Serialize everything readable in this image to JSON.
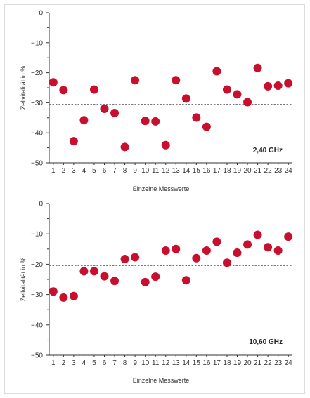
{
  "chart_data": [
    {
      "type": "scatter",
      "xlabel": "Einzelne Messwerte",
      "ylabel": "Zellvitalität in %",
      "annotation": "2,40 GHz",
      "ylim": [
        -50,
        0
      ],
      "xlim": [
        0.6,
        24.4
      ],
      "yticks": [
        "0",
        "−10",
        "−20",
        "−30",
        "−40",
        "−50"
      ],
      "ytick_values": [
        0,
        -10,
        -20,
        -30,
        -40,
        -50
      ],
      "xticks": [
        "1",
        "2",
        "3",
        "4",
        "5",
        "6",
        "7",
        "8",
        "9",
        "10",
        "11",
        "12",
        "13",
        "14",
        "15",
        "16",
        "17",
        "18",
        "19",
        "20",
        "21",
        "22",
        "23",
        "24"
      ],
      "reference_line": -30.5,
      "marker_color": "#c8102e",
      "x": [
        1,
        2,
        3,
        4,
        5,
        6,
        7,
        8,
        9,
        10,
        11,
        12,
        13,
        14,
        15,
        16,
        17,
        18,
        19,
        20,
        21,
        22,
        23,
        24
      ],
      "y": [
        -23.2,
        -25.8,
        -42.8,
        -35.8,
        -25.6,
        -32.0,
        -33.4,
        -44.7,
        -22.5,
        -36.0,
        -36.2,
        -44.1,
        -22.5,
        -28.6,
        -34.9,
        -38.0,
        -19.5,
        -25.6,
        -27.2,
        -29.8,
        -18.4,
        -24.5,
        -24.3,
        -23.5
      ]
    },
    {
      "type": "scatter",
      "xlabel": "Einzelne Messwerte",
      "ylabel": "Zellvitalität in %",
      "annotation": "10,60 GHz",
      "ylim": [
        -50,
        0
      ],
      "xlim": [
        0.6,
        24.4
      ],
      "yticks": [
        "0",
        "−10",
        "−20",
        "−30",
        "−40",
        "−50"
      ],
      "ytick_values": [
        0,
        -10,
        -20,
        -30,
        -40,
        -50
      ],
      "xticks": [
        "1",
        "2",
        "3",
        "4",
        "5",
        "6",
        "7",
        "8",
        "9",
        "10",
        "11",
        "12",
        "13",
        "14",
        "15",
        "16",
        "17",
        "18",
        "19",
        "20",
        "21",
        "22",
        "23",
        "24"
      ],
      "reference_line": -20.5,
      "marker_color": "#c8102e",
      "x": [
        1,
        2,
        3,
        4,
        5,
        6,
        7,
        8,
        9,
        10,
        11,
        12,
        13,
        14,
        15,
        16,
        17,
        18,
        19,
        20,
        21,
        22,
        23,
        24
      ],
      "y": [
        -29.0,
        -31.0,
        -30.5,
        -22.3,
        -22.3,
        -24.0,
        -25.5,
        -18.3,
        -17.7,
        -25.9,
        -24.1,
        -15.5,
        -15.0,
        -25.3,
        -18.0,
        -15.5,
        -12.6,
        -19.5,
        -16.2,
        -13.5,
        -10.3,
        -14.4,
        -15.5,
        -10.9
      ]
    }
  ]
}
